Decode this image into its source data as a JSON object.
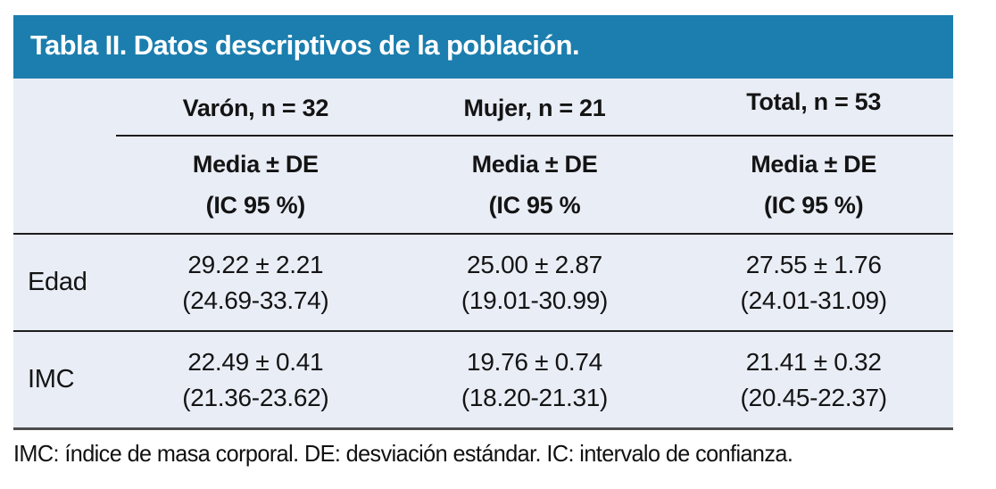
{
  "table": {
    "title": "Tabla II. Datos descriptivos de la población.",
    "columns": [
      {
        "group": "Varón, n = 32",
        "measure": "Media ± DE",
        "ci": "(IC 95 %)"
      },
      {
        "group": "Mujer, n = 21",
        "measure": "Media ± DE",
        "ci": "(IC 95 %"
      },
      {
        "group": "Total, n = 53",
        "measure": "Media ± DE",
        "ci": "(IC 95 %)"
      }
    ],
    "rows": [
      {
        "label": "Edad",
        "cells": [
          {
            "mean": "29.22 ± 2.21",
            "ci": "(24.69-33.74)"
          },
          {
            "mean": "25.00 ± 2.87",
            "ci": "(19.01-30.99)"
          },
          {
            "mean": "27.55 ± 1.76",
            "ci": "(24.01-31.09)"
          }
        ]
      },
      {
        "label": "IMC",
        "cells": [
          {
            "mean": "22.49 ± 0.41",
            "ci": "(21.36-23.62)"
          },
          {
            "mean": "19.76 ± 0.74",
            "ci": "(18.20-21.31)"
          },
          {
            "mean": "21.41 ± 0.32",
            "ci": "(20.45-22.37)"
          }
        ]
      }
    ],
    "footnote": "IMC: índice de masa corporal. DE: desviación estándar. IC: intervalo de confianza."
  },
  "colors": {
    "title_bar_bg": "#1b7eae",
    "title_text": "#ffffff",
    "table_body_bg": "#e9edf6",
    "rule": "#1c1c1c",
    "bottom_rule": "#4d4d4d",
    "text": "#141414"
  }
}
